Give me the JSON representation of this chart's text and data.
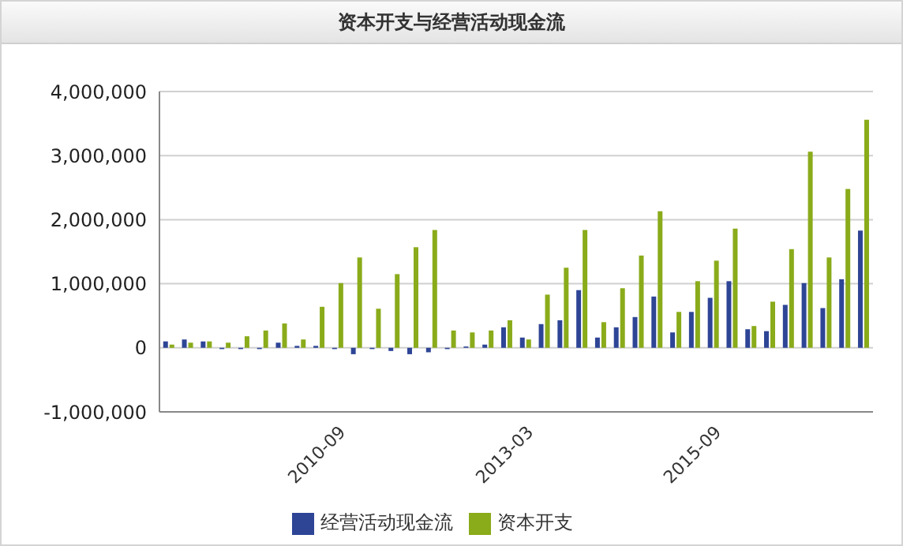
{
  "chart_data": {
    "type": "bar",
    "title": "资本开支与经营活动现金流",
    "categories": [
      null,
      null,
      null,
      null,
      null,
      null,
      null,
      null,
      null,
      "2010-09",
      null,
      null,
      null,
      null,
      null,
      null,
      null,
      null,
      null,
      "2013-03",
      null,
      null,
      null,
      null,
      null,
      null,
      null,
      null,
      null,
      "2015-09",
      null,
      null,
      null,
      null,
      null,
      null,
      null,
      null
    ],
    "series": [
      {
        "name": "经营活动现金流",
        "color": "#2e4596",
        "values": [
          100000,
          130000,
          100000,
          -20000,
          -20000,
          -20000,
          80000,
          30000,
          30000,
          -20000,
          -100000,
          -20000,
          -50000,
          -100000,
          -70000,
          -20000,
          20000,
          50000,
          320000,
          160000,
          370000,
          430000,
          900000,
          160000,
          320000,
          480000,
          800000,
          240000,
          560000,
          780000,
          1040000,
          290000,
          260000,
          670000,
          1010000,
          620000,
          1070000,
          1830000
        ]
      },
      {
        "name": "资本开支",
        "color": "#8aab1a",
        "values": [
          50000,
          80000,
          100000,
          80000,
          180000,
          270000,
          380000,
          130000,
          640000,
          1010000,
          1410000,
          610000,
          1150000,
          1570000,
          1840000,
          270000,
          240000,
          270000,
          430000,
          130000,
          830000,
          1250000,
          1840000,
          400000,
          930000,
          1440000,
          2130000,
          560000,
          1040000,
          1360000,
          1860000,
          340000,
          720000,
          1540000,
          3060000,
          1410000,
          2480000,
          3560000
        ]
      }
    ],
    "ylim": [
      -1000000,
      4000000
    ],
    "yticks": [
      {
        "value": -1000000,
        "label": "-1,000,000"
      },
      0,
      {
        "value": 1000000,
        "label": "1,000,000"
      },
      {
        "value": 2000000,
        "label": "2,000,000"
      },
      {
        "value": 3000000,
        "label": "3,000,000"
      },
      {
        "value": 4000000,
        "label": "4,000,000"
      }
    ],
    "grid": "y",
    "legend": "bottom"
  }
}
